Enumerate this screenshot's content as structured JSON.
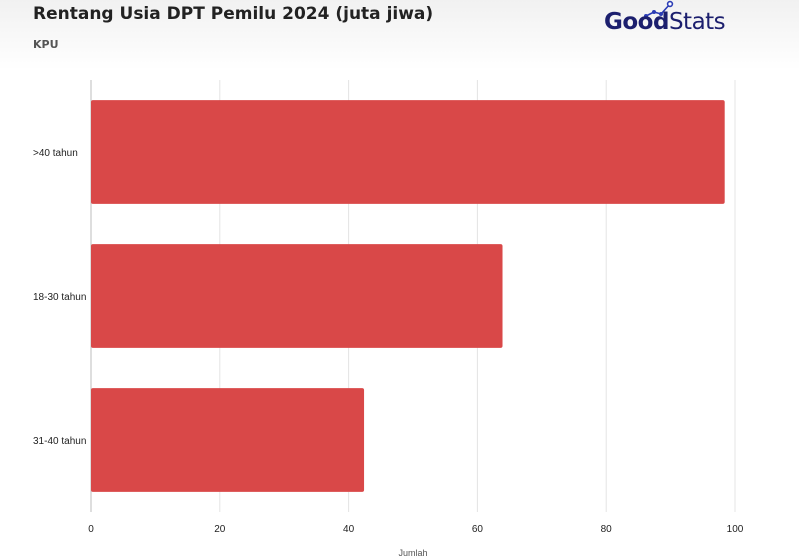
{
  "header": {
    "title": "Rentang Usia DPT Pemilu 2024 (juta jiwa)",
    "source": "KPU"
  },
  "logo": {
    "part1": "Good",
    "part2": "Stats",
    "icon": "trend-line-icon",
    "color": "#1c1f6e",
    "accent": "#2b3cb5"
  },
  "chart_data": {
    "type": "bar",
    "orientation": "horizontal",
    "categories": [
      ">40 tahun",
      "18-30 tahun",
      "31-40 tahun"
    ],
    "values": [
      98.4,
      63.9,
      42.4
    ],
    "xlabel": "Jumlah",
    "ylabel": "",
    "xlim": [
      0,
      100
    ],
    "xticks": [
      0,
      20,
      40,
      60,
      80,
      100
    ],
    "grid": true,
    "bar_color": "#d94848"
  }
}
